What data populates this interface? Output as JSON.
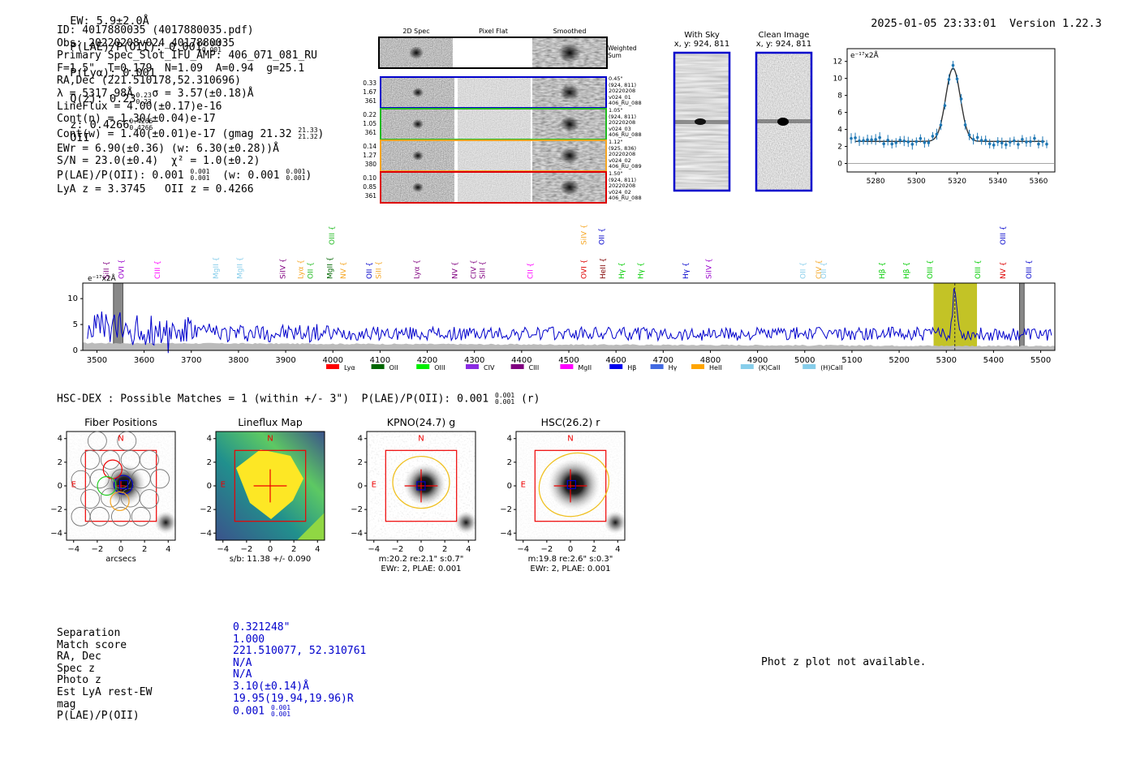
{
  "header": {
    "ew_label": "EW: 5.9±2.0Å",
    "plae_label": "P(LAE)/P(OII): 0.001",
    "plae_hi": "0.001",
    "plae_lo": "0.001",
    "plya_label": "P(Lyα): 0.001",
    "qz_label": "Q(z): 0.23",
    "qz_hi": "0.23",
    "qz_lo": "0.23",
    "z_label": "z: 0.4266",
    "z_hi": "0.4266",
    "z_lo": "0.4266",
    "z_line": "OII",
    "timestamp": "2025-01-05 23:33:01",
    "version": "Version 1.22.3"
  },
  "info": {
    "id": "ID: 4017880035 (4017880035.pdf)",
    "obs": "Obs: 20220208v024_4017880035",
    "primary": "Primary Spec_Slot_IFU_AMP: 406_071_081_RU",
    "fiber": "F=1.5\"  T=0.179  N=1.09  A=0.94  g=25.1",
    "radec": "RA,Dec (221.510178,52.310696)",
    "lambda": "λ = 5317.98Å   σ = 3.57(±0.18)Å",
    "lineflux": "LineFlux = 4.00(±0.17)e-16",
    "contn": "Cont(n) = 1.30(±0.04)e-17",
    "contw": "Cont(w) = 1.40(±0.01)e-17 (gmag 21.32",
    "contw_hi": "21.33",
    "contw_lo": "21.32",
    "ewr": "EWr = 6.90(±0.36) (w: 6.30(±0.28))Å",
    "sn": "S/N = 23.0(±0.4)  χ² = 1.0(±0.2)",
    "plae": "P(LAE)/P(OII): 0.001",
    "plae_hi": "0.001",
    "plae_lo": "0.001",
    "plae_w": "(w: 0.001",
    "plae_w_hi": "0.001",
    "plae_w_lo": "0.001",
    "lya": "LyA z = 3.3745   OII z = 0.4266"
  },
  "cutouts": {
    "col_2d": "2D Spec",
    "col_flat": "Pixel Flat",
    "col_smooth": "Smoothed",
    "weighted": "Weighted Sum",
    "rows": [
      {
        "stats": [
          "0.33",
          "1.67",
          "361"
        ],
        "meta": [
          "0.45\"",
          "(924, 811)",
          "20220208",
          "v024_01",
          "406_RU_088"
        ],
        "color": "#0000cc"
      },
      {
        "stats": [
          "0.22",
          "1.05",
          "361"
        ],
        "meta": [
          "1.05\"",
          "(924, 811)",
          "20220208",
          "v024_03",
          "406_RU_088"
        ],
        "color": "#22bb22"
      },
      {
        "stats": [
          "0.14",
          "1.27",
          "380"
        ],
        "meta": [
          "1.12\"",
          "(925, 836)",
          "20220208",
          "v024_02",
          "406_RU_089"
        ],
        "color": "#f5a623"
      },
      {
        "stats": [
          "0.10",
          "0.85",
          "361"
        ],
        "meta": [
          "1.50\"",
          "(924, 811)",
          "20220208",
          "v024_02",
          "406_RU_088"
        ],
        "color": "#dd0000"
      }
    ],
    "with_sky": "With Sky",
    "with_sky_xy": "x, y: 924, 811",
    "clean": "Clean Image",
    "clean_xy": "x, y: 924, 811"
  },
  "line_fit": {
    "ylabel": "e⁻¹⁷x2Å",
    "yticks": [
      "0",
      "2",
      "4",
      "6",
      "8",
      "10",
      "12"
    ],
    "xticks": [
      "5280",
      "5300",
      "5320",
      "5340",
      "5360"
    ],
    "xlim": [
      5266,
      5368
    ],
    "ylim": [
      -1,
      13.5
    ],
    "center": 5318,
    "sigma": 3.57,
    "peak": 11.2,
    "cont": 2.6
  },
  "chart_data": {
    "type": "line",
    "title": "",
    "ylabel": "e⁻¹⁷x2Å",
    "xlim": [
      3470,
      5530
    ],
    "ylim": [
      0,
      13
    ],
    "xticks": [
      "3500",
      "3600",
      "3700",
      "3800",
      "3900",
      "4000",
      "4100",
      "4200",
      "4300",
      "4400",
      "4500",
      "4600",
      "4700",
      "4800",
      "4900",
      "5000",
      "5100",
      "5200",
      "5300",
      "5400",
      "5500"
    ],
    "yticks": [
      "0",
      "5",
      "10"
    ],
    "emission_peak": {
      "x": 5318,
      "y": 11.5
    },
    "highlight_window": [
      5273,
      5365
    ],
    "masked_regions": [
      [
        3535,
        3555
      ],
      [
        5455,
        5465
      ]
    ],
    "line_markers": [
      {
        "name": "SiII",
        "x": 3520,
        "color": "#800080",
        "row": 1
      },
      {
        "name": "OVI",
        "x": 3552,
        "color": "#9900cc",
        "row": 1
      },
      {
        "name": "CIII",
        "x": 3628,
        "color": "#ff00ff",
        "row": 1
      },
      {
        "name": "MgII",
        "x": 3752,
        "color": "#87ceeb",
        "row": 1
      },
      {
        "name": "MgII",
        "x": 3803,
        "color": "#87ceeb",
        "row": 1
      },
      {
        "name": "SiIV",
        "x": 3894,
        "color": "#800080",
        "row": 1
      },
      {
        "name": "Lyα",
        "x": 3932,
        "color": "#f5a623",
        "row": 1
      },
      {
        "name": "OII",
        "x": 3952,
        "color": "#22bb22",
        "row": 1
      },
      {
        "name": "MgII",
        "x": 3994,
        "color": "#006600",
        "row": 1
      },
      {
        "name": "OIII",
        "x": 3998,
        "color": "#22bb22",
        "row": 0
      },
      {
        "name": "NV",
        "x": 4022,
        "color": "#f5a623",
        "row": 1
      },
      {
        "name": "OII",
        "x": 4077,
        "color": "#0000cc",
        "row": 1
      },
      {
        "name": "SiII",
        "x": 4097,
        "color": "#f5a623",
        "row": 1
      },
      {
        "name": "Lyα",
        "x": 4178,
        "color": "#800080",
        "row": 1
      },
      {
        "name": "NV",
        "x": 4258,
        "color": "#800080",
        "row": 1
      },
      {
        "name": "CIV",
        "x": 4298,
        "color": "#800080",
        "row": 1
      },
      {
        "name": "SiII",
        "x": 4317,
        "color": "#800080",
        "row": 1
      },
      {
        "name": "CII",
        "x": 4418,
        "color": "#ff00ff",
        "row": 1
      },
      {
        "name": "SiIV",
        "x": 4532,
        "color": "#f5a623",
        "row": 0
      },
      {
        "name": "OVI",
        "x": 4532,
        "color": "#dd0000",
        "row": 1
      },
      {
        "name": "OII",
        "x": 4570,
        "color": "#0000cc",
        "row": 0
      },
      {
        "name": "HeII",
        "x": 4572,
        "color": "#800000",
        "row": 1
      },
      {
        "name": "Hγ",
        "x": 4612,
        "color": "#00cc00",
        "row": 1
      },
      {
        "name": "Hγ",
        "x": 4652,
        "color": "#00cc00",
        "row": 1
      },
      {
        "name": "Hγ",
        "x": 4748,
        "color": "#0000cc",
        "row": 1
      },
      {
        "name": "SiIV",
        "x": 4797,
        "color": "#9900cc",
        "row": 1
      },
      {
        "name": "OII",
        "x": 4996,
        "color": "#87ceeb",
        "row": 1
      },
      {
        "name": "CIV",
        "x": 5030,
        "color": "#f5a623",
        "row": 1
      },
      {
        "name": "OII",
        "x": 5040,
        "color": "#87ceeb",
        "row": 1
      },
      {
        "name": "Hβ",
        "x": 5164,
        "color": "#00cc00",
        "row": 1
      },
      {
        "name": "Hβ",
        "x": 5215,
        "color": "#00cc00",
        "row": 1
      },
      {
        "name": "OIII",
        "x": 5265,
        "color": "#00cc00",
        "row": 1
      },
      {
        "name": "OIII",
        "x": 5367,
        "color": "#00cc00",
        "row": 1
      },
      {
        "name": "OIII",
        "x": 5420,
        "color": "#0000cc",
        "row": 0
      },
      {
        "name": "NV",
        "x": 5420,
        "color": "#dd0000",
        "row": 1
      },
      {
        "name": "OIII",
        "x": 5475,
        "color": "#0000cc",
        "row": 1
      }
    ],
    "legend": [
      {
        "label": "Lyα",
        "color": "#ff0000"
      },
      {
        "label": "OII",
        "color": "#006600"
      },
      {
        "label": "OIII",
        "color": "#00ee00"
      },
      {
        "label": "CIV",
        "color": "#8a2be2"
      },
      {
        "label": "CIII",
        "color": "#800080"
      },
      {
        "label": "MgII",
        "color": "#ff00ff"
      },
      {
        "label": "Hβ",
        "color": "#0000ee"
      },
      {
        "label": "Hγ",
        "color": "#4169e1"
      },
      {
        "label": "HeII",
        "color": "#ffa500"
      },
      {
        "label": "(K)CaII",
        "color": "#87ceeb"
      },
      {
        "label": "(H)CaII",
        "color": "#87ceeb"
      }
    ]
  },
  "hsc": {
    "title": "HSC-DEX : Possible Matches = 1 (within +/- 3\")  P(LAE)/P(OII): 0.001",
    "plae_hi": "0.001",
    "plae_lo": "0.001",
    "band": "(r)",
    "panels": [
      {
        "title": "Fiber Positions",
        "sub1": "arcsecs",
        "sub2": "",
        "sub3": ""
      },
      {
        "title": "Lineflux Map",
        "sub1": "s/b: 11.38 +/- 0.090",
        "sub2": "",
        "sub3": ""
      },
      {
        "title": "KPNO(24.7) g",
        "sub1": "m:20.2  re:2.1\"  s:0.7\"",
        "sub2": "EWr: 2, PLAE: 0.001",
        "sub3": ""
      },
      {
        "title": "HSC(26.2) r",
        "sub1": "m:19.8  re:2.6\"  s:0.3\"",
        "sub2": "EWr: 2, PLAE: 0.001",
        "sub3": ""
      }
    ],
    "ticks": [
      "−4",
      "−2",
      "0",
      "2",
      "4"
    ],
    "north": "N",
    "east": "E"
  },
  "match": {
    "labels": [
      "Separation",
      "Match score",
      "RA, Dec",
      "Spec z",
      "Photo z",
      "Est LyA rest-EW",
      "mag",
      "P(LAE)/P(OII)"
    ],
    "values": [
      "0.321248\"",
      "1.000",
      "221.510077, 52.310761",
      "N/A",
      "N/A",
      "3.10(±0.14)Å",
      "19.95(19.94,19.96)R",
      "0.001"
    ],
    "plae_hi": "0.001",
    "plae_lo": "0.001"
  },
  "photz": "Phot z plot not available."
}
